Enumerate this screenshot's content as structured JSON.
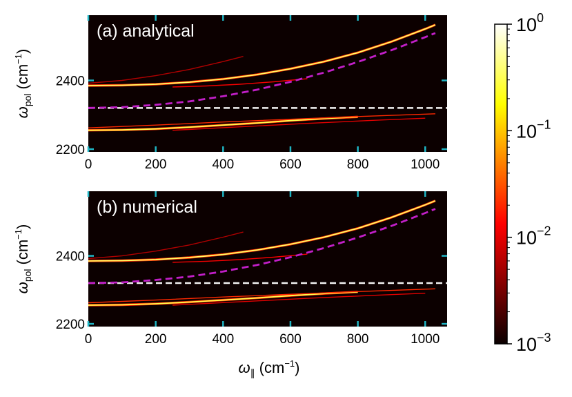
{
  "chart_data": {
    "type": "heatmap",
    "xlabel": {
      "symbol": "ω",
      "sub": "∥",
      "unit_open": "(cm",
      "unit_sup": "−1",
      "unit_close": ")"
    },
    "ylabel": {
      "symbol": "ω",
      "sub": "pol",
      "unit_open": "(cm",
      "unit_sup": "−1",
      "unit_close": ")"
    },
    "xlim": [
      0,
      1065
    ],
    "ylim": [
      2192,
      2590
    ],
    "xticks": [
      0,
      200,
      400,
      600,
      800,
      1000
    ],
    "yticks": [
      2200,
      2400
    ],
    "colorbar": {
      "scale": "log",
      "range": [
        0.001,
        1
      ],
      "colormap": "hot",
      "ticks": [
        {
          "base": "10",
          "exp": "0",
          "value": 1
        },
        {
          "base": "10",
          "exp": "−1",
          "value": 0.1
        },
        {
          "base": "10",
          "exp": "−2",
          "value": 0.01
        },
        {
          "base": "10",
          "exp": "−3",
          "value": 0.001
        }
      ]
    },
    "colors": {
      "background": "#0c0000",
      "tick": "#1fb5c4",
      "photon_dashed": "#c21fc8",
      "molecule_dashed": "#f2f2f2"
    },
    "panels": [
      {
        "label": "(a) analytical",
        "series": [
          {
            "name": "upper-polariton",
            "intensity": 0.35,
            "x": [
              0,
              100,
              200,
              300,
              400,
              500,
              600,
              700,
              800,
              900,
              1000,
              1030
            ],
            "y": [
              2385,
              2386,
              2389,
              2395,
              2404,
              2417,
              2434,
              2455,
              2481,
              2513,
              2550,
              2562
            ]
          },
          {
            "name": "upper-secondary-faint",
            "intensity": 0.006,
            "x": [
              0,
              100,
              200,
              300,
              400,
              460
            ],
            "y": [
              2392,
              2400,
              2414,
              2432,
              2455,
              2470
            ]
          },
          {
            "name": "upper-secondary-shifted",
            "intensity": 0.012,
            "x": [
              250,
              350,
              450,
              550,
              650
            ],
            "y": [
              2381,
              2384,
              2389,
              2396,
              2405
            ]
          },
          {
            "name": "lower-polariton",
            "intensity": 0.3,
            "x": [
              0,
              100,
              200,
              300,
              400,
              500,
              600,
              700,
              800
            ],
            "y": [
              2255,
              2256,
              2259,
              2264,
              2270,
              2276,
              2283,
              2289,
              2294
            ]
          },
          {
            "name": "lower-secondary",
            "intensity": 0.02,
            "x": [
              0,
              200,
              400,
              600,
              800,
              1030
            ],
            "y": [
              2262,
              2270,
              2279,
              2287,
              2295,
              2303
            ]
          },
          {
            "name": "lower-secondary-shifted",
            "intensity": 0.01,
            "x": [
              250,
              450,
              650,
              850,
              1000
            ],
            "y": [
              2255,
              2265,
              2275,
              2284,
              2290
            ]
          }
        ],
        "photon": {
          "x": [
            0,
            100,
            200,
            300,
            400,
            500,
            600,
            700,
            800,
            900,
            1000,
            1030
          ],
          "y": [
            2320,
            2322,
            2329,
            2339,
            2354,
            2373,
            2396,
            2423,
            2454,
            2488,
            2526,
            2538
          ]
        },
        "molecule": {
          "y": 2320
        }
      },
      {
        "label": "(b) numerical",
        "series": [
          {
            "name": "upper-polariton",
            "intensity": 0.35,
            "x": [
              0,
              100,
              200,
              300,
              400,
              500,
              600,
              700,
              800,
              900,
              1000,
              1030
            ],
            "y": [
              2385,
              2386,
              2389,
              2395,
              2404,
              2417,
              2434,
              2455,
              2481,
              2513,
              2550,
              2562
            ]
          },
          {
            "name": "upper-secondary-faint",
            "intensity": 0.006,
            "x": [
              0,
              100,
              200,
              300,
              400,
              460
            ],
            "y": [
              2392,
              2400,
              2414,
              2432,
              2455,
              2470
            ]
          },
          {
            "name": "upper-secondary-shifted",
            "intensity": 0.012,
            "x": [
              250,
              350,
              450,
              550,
              650
            ],
            "y": [
              2381,
              2384,
              2389,
              2396,
              2405
            ]
          },
          {
            "name": "lower-polariton",
            "intensity": 0.3,
            "x": [
              0,
              100,
              200,
              300,
              400,
              500,
              600,
              700,
              800
            ],
            "y": [
              2255,
              2256,
              2259,
              2264,
              2270,
              2276,
              2283,
              2289,
              2294
            ]
          },
          {
            "name": "lower-secondary",
            "intensity": 0.02,
            "x": [
              0,
              200,
              400,
              600,
              800,
              1030
            ],
            "y": [
              2262,
              2270,
              2279,
              2287,
              2295,
              2303
            ]
          },
          {
            "name": "lower-secondary-shifted",
            "intensity": 0.01,
            "x": [
              250,
              450,
              650,
              850,
              1000
            ],
            "y": [
              2255,
              2265,
              2275,
              2284,
              2290
            ]
          }
        ],
        "photon": {
          "x": [
            0,
            100,
            200,
            300,
            400,
            500,
            600,
            700,
            800,
            900,
            1000,
            1030
          ],
          "y": [
            2320,
            2322,
            2329,
            2339,
            2354,
            2373,
            2396,
            2423,
            2454,
            2488,
            2526,
            2538
          ]
        },
        "molecule": {
          "y": 2320
        }
      }
    ]
  }
}
